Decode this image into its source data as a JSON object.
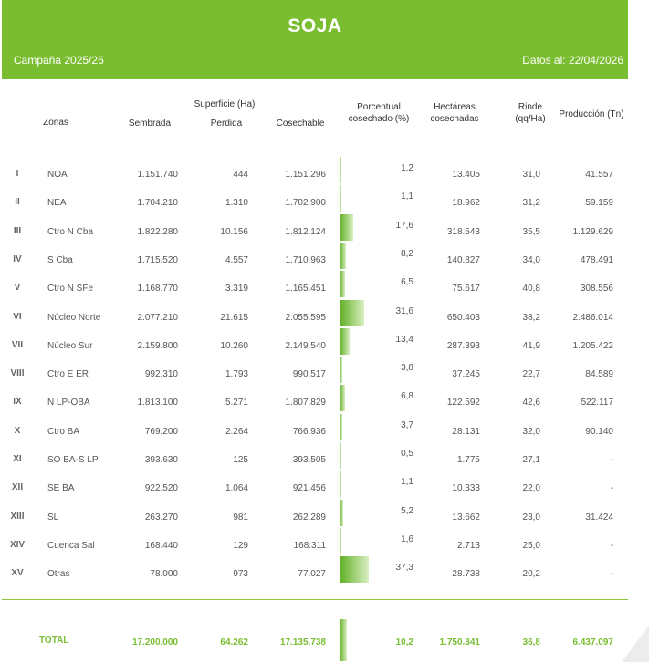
{
  "header": {
    "title": "SOJA",
    "campaign": "Campaña 2025/26",
    "date": "Datos al: 22/04/2026"
  },
  "columns": {
    "zonas": "Zonas",
    "superficie": "Superficie (Ha)",
    "sembrada": "Sembrada",
    "perdida": "Perdida",
    "cosechable": "Cosechable",
    "porcentual_1": "Porcentual",
    "porcentual_2": "cosechado (%)",
    "hectareas_1": "Hectáreas",
    "hectareas_2": "cosechadas",
    "rinde_1": "Rinde",
    "rinde_2": "(qq/Ha)",
    "produccion": "Producción (Tn)"
  },
  "rows": [
    {
      "num": "I",
      "zona": "NOA",
      "sembrada": "1.151.740",
      "perdida": "444",
      "cosechable": "1.151.296",
      "pct": "1,2",
      "pct_value": 1.2,
      "hectareas": "13.405",
      "rinde": "31,0",
      "produccion": "41.557"
    },
    {
      "num": "II",
      "zona": "NEA",
      "sembrada": "1.704.210",
      "perdida": "1.310",
      "cosechable": "1.702.900",
      "pct": "1,1",
      "pct_value": 1.1,
      "hectareas": "18.962",
      "rinde": "31,2",
      "produccion": "59.159"
    },
    {
      "num": "III",
      "zona": "Ctro N Cba",
      "sembrada": "1.822.280",
      "perdida": "10.156",
      "cosechable": "1.812.124",
      "pct": "17,6",
      "pct_value": 17.6,
      "hectareas": "318.543",
      "rinde": "35,5",
      "produccion": "1.129.629"
    },
    {
      "num": "IV",
      "zona": "S Cba",
      "sembrada": "1.715.520",
      "perdida": "4.557",
      "cosechable": "1.710.963",
      "pct": "8,2",
      "pct_value": 8.2,
      "hectareas": "140.827",
      "rinde": "34,0",
      "produccion": "478.491"
    },
    {
      "num": "V",
      "zona": "Ctro N SFe",
      "sembrada": "1.168.770",
      "perdida": "3.319",
      "cosechable": "1.165.451",
      "pct": "6,5",
      "pct_value": 6.5,
      "hectareas": "75.617",
      "rinde": "40,8",
      "produccion": "308.556"
    },
    {
      "num": "VI",
      "zona": "Núcleo Norte",
      "sembrada": "2.077.210",
      "perdida": "21.615",
      "cosechable": "2.055.595",
      "pct": "31,6",
      "pct_value": 31.6,
      "hectareas": "650.403",
      "rinde": "38,2",
      "produccion": "2.486.014"
    },
    {
      "num": "VII",
      "zona": "Núcleo Sur",
      "sembrada": "2.159.800",
      "perdida": "10.260",
      "cosechable": "2.149.540",
      "pct": "13,4",
      "pct_value": 13.4,
      "hectareas": "287.393",
      "rinde": "41,9",
      "produccion": "1.205.422"
    },
    {
      "num": "VIII",
      "zona": "Ctro E ER",
      "sembrada": "992.310",
      "perdida": "1.793",
      "cosechable": "990.517",
      "pct": "3,8",
      "pct_value": 3.8,
      "hectareas": "37.245",
      "rinde": "22,7",
      "produccion": "84.589"
    },
    {
      "num": "IX",
      "zona": "N LP-OBA",
      "sembrada": "1.813.100",
      "perdida": "5.271",
      "cosechable": "1.807.829",
      "pct": "6,8",
      "pct_value": 6.8,
      "hectareas": "122.592",
      "rinde": "42,6",
      "produccion": "522.117"
    },
    {
      "num": "X",
      "zona": "Ctro BA",
      "sembrada": "769.200",
      "perdida": "2.264",
      "cosechable": "766.936",
      "pct": "3,7",
      "pct_value": 3.7,
      "hectareas": "28.131",
      "rinde": "32,0",
      "produccion": "90.140"
    },
    {
      "num": "XI",
      "zona": "SO BA-S LP",
      "sembrada": "393.630",
      "perdida": "125",
      "cosechable": "393.505",
      "pct": "0,5",
      "pct_value": 0.5,
      "hectareas": "1.775",
      "rinde": "27,1",
      "produccion": "-"
    },
    {
      "num": "XII",
      "zona": "SE BA",
      "sembrada": "922.520",
      "perdida": "1.064",
      "cosechable": "921.456",
      "pct": "1,1",
      "pct_value": 1.1,
      "hectareas": "10.333",
      "rinde": "22,0",
      "produccion": "-"
    },
    {
      "num": "XIII",
      "zona": "SL",
      "sembrada": "263.270",
      "perdida": "981",
      "cosechable": "262.289",
      "pct": "5,2",
      "pct_value": 5.2,
      "hectareas": "13.662",
      "rinde": "23,0",
      "produccion": "31.424"
    },
    {
      "num": "XIV",
      "zona": "Cuenca Sal",
      "sembrada": "168.440",
      "perdida": "129",
      "cosechable": "168.311",
      "pct": "1,6",
      "pct_value": 1.6,
      "hectareas": "2.713",
      "rinde": "25,0",
      "produccion": "-"
    },
    {
      "num": "XV",
      "zona": "Otras",
      "sembrada": "78.000",
      "perdida": "973",
      "cosechable": "77.027",
      "pct": "37,3",
      "pct_value": 37.3,
      "hectareas": "28.738",
      "rinde": "20,2",
      "produccion": "-"
    }
  ],
  "total": {
    "label": "TOTAL",
    "sembrada": "17.200.000",
    "perdida": "64.262",
    "cosechable": "17.135.738",
    "pct": "10,2",
    "pct_value": 10.2,
    "hectareas": "1.750.341",
    "rinde": "36,8",
    "produccion": "6.437.097"
  },
  "colors": {
    "brand_green": "#7bbd31",
    "bar_green": "#5fae23"
  }
}
